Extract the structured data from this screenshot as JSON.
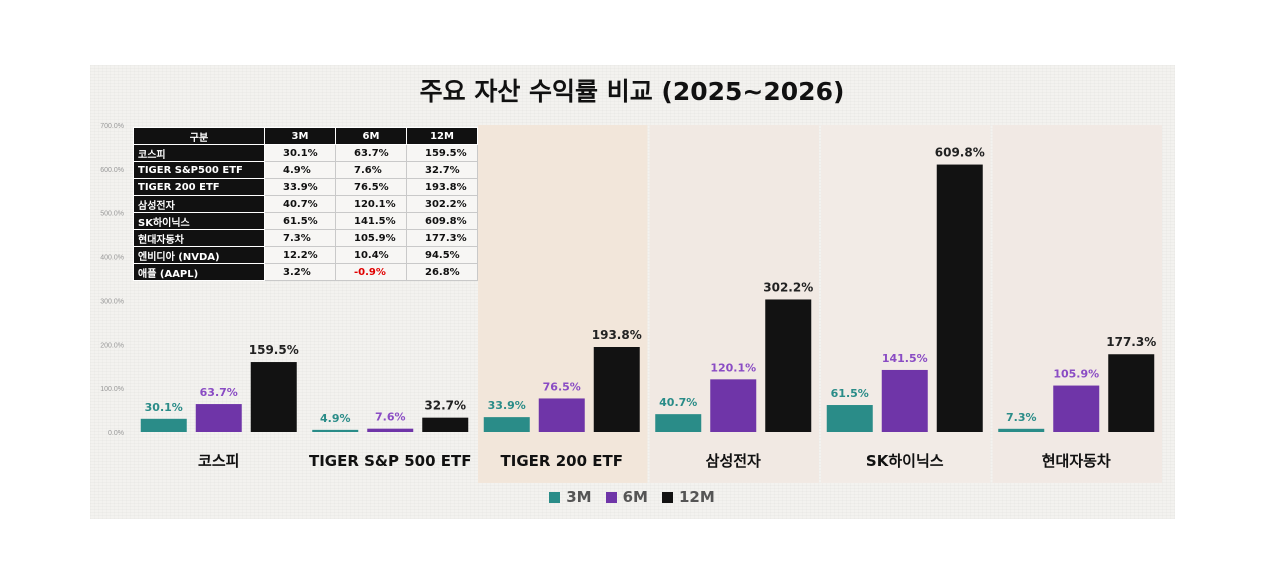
{
  "chart_data": {
    "type": "bar",
    "title": "주요 자산 수익률 비교 (2025~2026)",
    "categories": [
      "코스피",
      "TIGER S&P 500 ETF",
      "TIGER 200 ETF",
      "삼성전자",
      "SK하이닉스",
      "현대자동차"
    ],
    "series": [
      {
        "name": "3M",
        "color": "#2a8c88",
        "values": [
          30.1,
          4.9,
          33.9,
          40.7,
          61.5,
          7.3
        ]
      },
      {
        "name": "6M",
        "color": "#6f35a8",
        "values": [
          63.7,
          7.6,
          76.5,
          120.1,
          141.5,
          105.9
        ]
      },
      {
        "name": "12M",
        "color": "#121212",
        "values": [
          159.5,
          32.7,
          193.8,
          302.2,
          609.8,
          177.3
        ]
      }
    ],
    "data_labels": [
      [
        "30.1%",
        "4.9%",
        "33.9%",
        "40.7%",
        "61.5%",
        "7.3%"
      ],
      [
        "63.7%",
        "7.6%",
        "76.5%",
        "120.1%",
        "141.5%",
        "105.9%"
      ],
      [
        "159.5%",
        "32.7%",
        "193.8%",
        "302.2%",
        "609.8%",
        "177.3%"
      ]
    ],
    "y_ticks": [
      "0.0%",
      "100.0%",
      "200.0%",
      "300.0%",
      "400.0%",
      "500.0%",
      "600.0%",
      "700.0%"
    ],
    "ylim": [
      0,
      700
    ],
    "grid": false,
    "legend": "bottom",
    "highlight_bands": [
      "TIGER 200 ETF",
      "삼성전자",
      "SK하이닉스",
      "현대자동차"
    ]
  },
  "table": {
    "headers": [
      "구분",
      "3M",
      "6M",
      "12M"
    ],
    "rows": [
      [
        "코스피",
        "30.1%",
        "63.7%",
        "159.5%"
      ],
      [
        "TIGER S&P500 ETF",
        "4.9%",
        "7.6%",
        "32.7%"
      ],
      [
        "TIGER 200 ETF",
        "33.9%",
        "76.5%",
        "193.8%"
      ],
      [
        "삼성전자",
        "40.7%",
        "120.1%",
        "302.2%"
      ],
      [
        "SK하이닉스",
        "61.5%",
        "141.5%",
        "609.8%"
      ],
      [
        "현대자동차",
        "7.3%",
        "105.9%",
        "177.3%"
      ],
      [
        "엔비디아 (NVDA)",
        "12.2%",
        "10.4%",
        "94.5%"
      ],
      [
        "애플 (AAPL)",
        "3.2%",
        "-0.9%",
        "26.8%"
      ]
    ],
    "negative_color": "#e00000"
  },
  "legend": {
    "items": [
      {
        "label": "3M",
        "color": "#2a8c88"
      },
      {
        "label": "6M",
        "color": "#6f35a8"
      },
      {
        "label": "12M",
        "color": "#121212"
      }
    ]
  }
}
